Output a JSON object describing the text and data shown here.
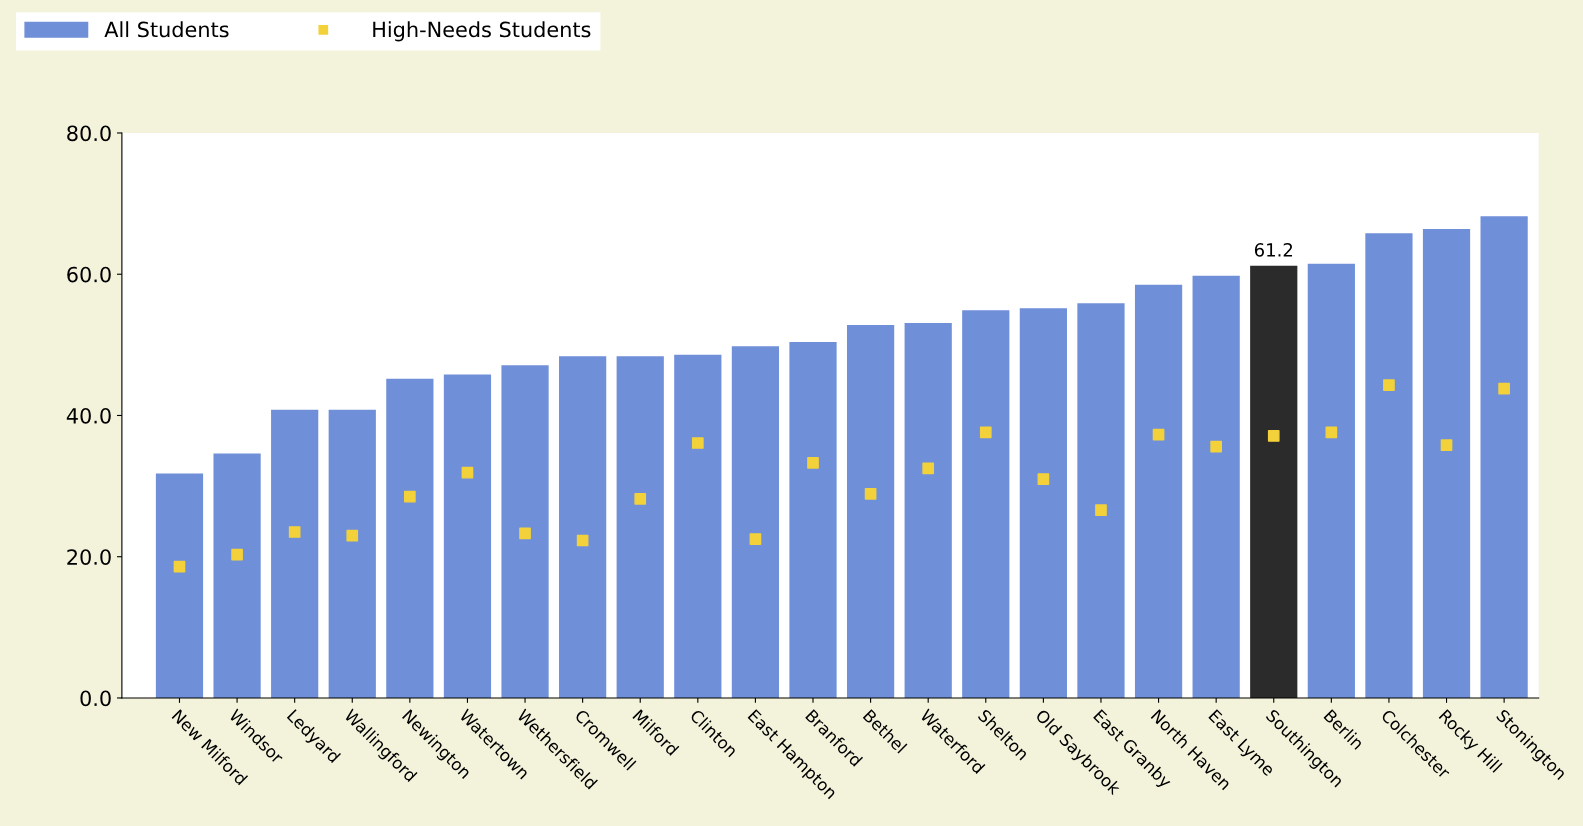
{
  "chart_data": {
    "type": "bar",
    "categories": [
      "New Milford",
      "Windsor",
      "Ledyard",
      "Wallingford",
      "Newington",
      "Watertown",
      "Wethersfield",
      "Cromwell",
      "Milford",
      "Clinton",
      "East Hampton",
      "Branford",
      "Bethel",
      "Waterford",
      "Shelton",
      "Old Saybrook",
      "East Granby",
      "North Haven",
      "East Lyme",
      "Southington",
      "Berlin",
      "Colchester",
      "Rocky Hill",
      "Stonington"
    ],
    "series": [
      {
        "name": "All Students",
        "color": "#6f8fd8",
        "colors": [
          "#6f8fd8",
          "#6f8fd8",
          "#6f8fd8",
          "#6f8fd8",
          "#6f8fd8",
          "#6f8fd8",
          "#6f8fd8",
          "#6f8fd8",
          "#6f8fd8",
          "#6f8fd8",
          "#6f8fd8",
          "#6f8fd8",
          "#6f8fd8",
          "#6f8fd8",
          "#6f8fd8",
          "#6f8fd8",
          "#6f8fd8",
          "#6f8fd8",
          "#6f8fd8",
          "#2b2b2b",
          "#6f8fd8",
          "#6f8fd8",
          "#6f8fd8",
          "#6f8fd8"
        ],
        "values": [
          31.8,
          34.6,
          40.8,
          40.8,
          45.2,
          45.8,
          47.1,
          48.4,
          48.4,
          48.6,
          49.8,
          50.4,
          52.8,
          53.1,
          54.9,
          55.2,
          55.9,
          58.5,
          59.8,
          61.2,
          61.5,
          65.8,
          66.4,
          68.2
        ],
        "value_labels": [
          null,
          null,
          null,
          null,
          null,
          null,
          null,
          null,
          null,
          null,
          null,
          null,
          null,
          null,
          null,
          null,
          null,
          null,
          null,
          "61.2",
          null,
          null,
          null,
          null
        ]
      },
      {
        "name": "High-Needs Students",
        "type": "scatter",
        "color": "#f2d13a",
        "marker": "square",
        "values": [
          18.6,
          20.3,
          23.5,
          23.0,
          28.5,
          31.9,
          23.3,
          22.3,
          28.2,
          36.1,
          22.5,
          33.3,
          28.9,
          32.5,
          37.6,
          31.0,
          26.6,
          37.3,
          35.6,
          37.1,
          37.6,
          44.3,
          35.8,
          43.8
        ]
      }
    ],
    "ylim": [
      0,
      80
    ],
    "yticks": [
      "0.0",
      "20.0",
      "40.0",
      "60.0",
      "80.0"
    ],
    "grid": false,
    "legend": "top left"
  }
}
